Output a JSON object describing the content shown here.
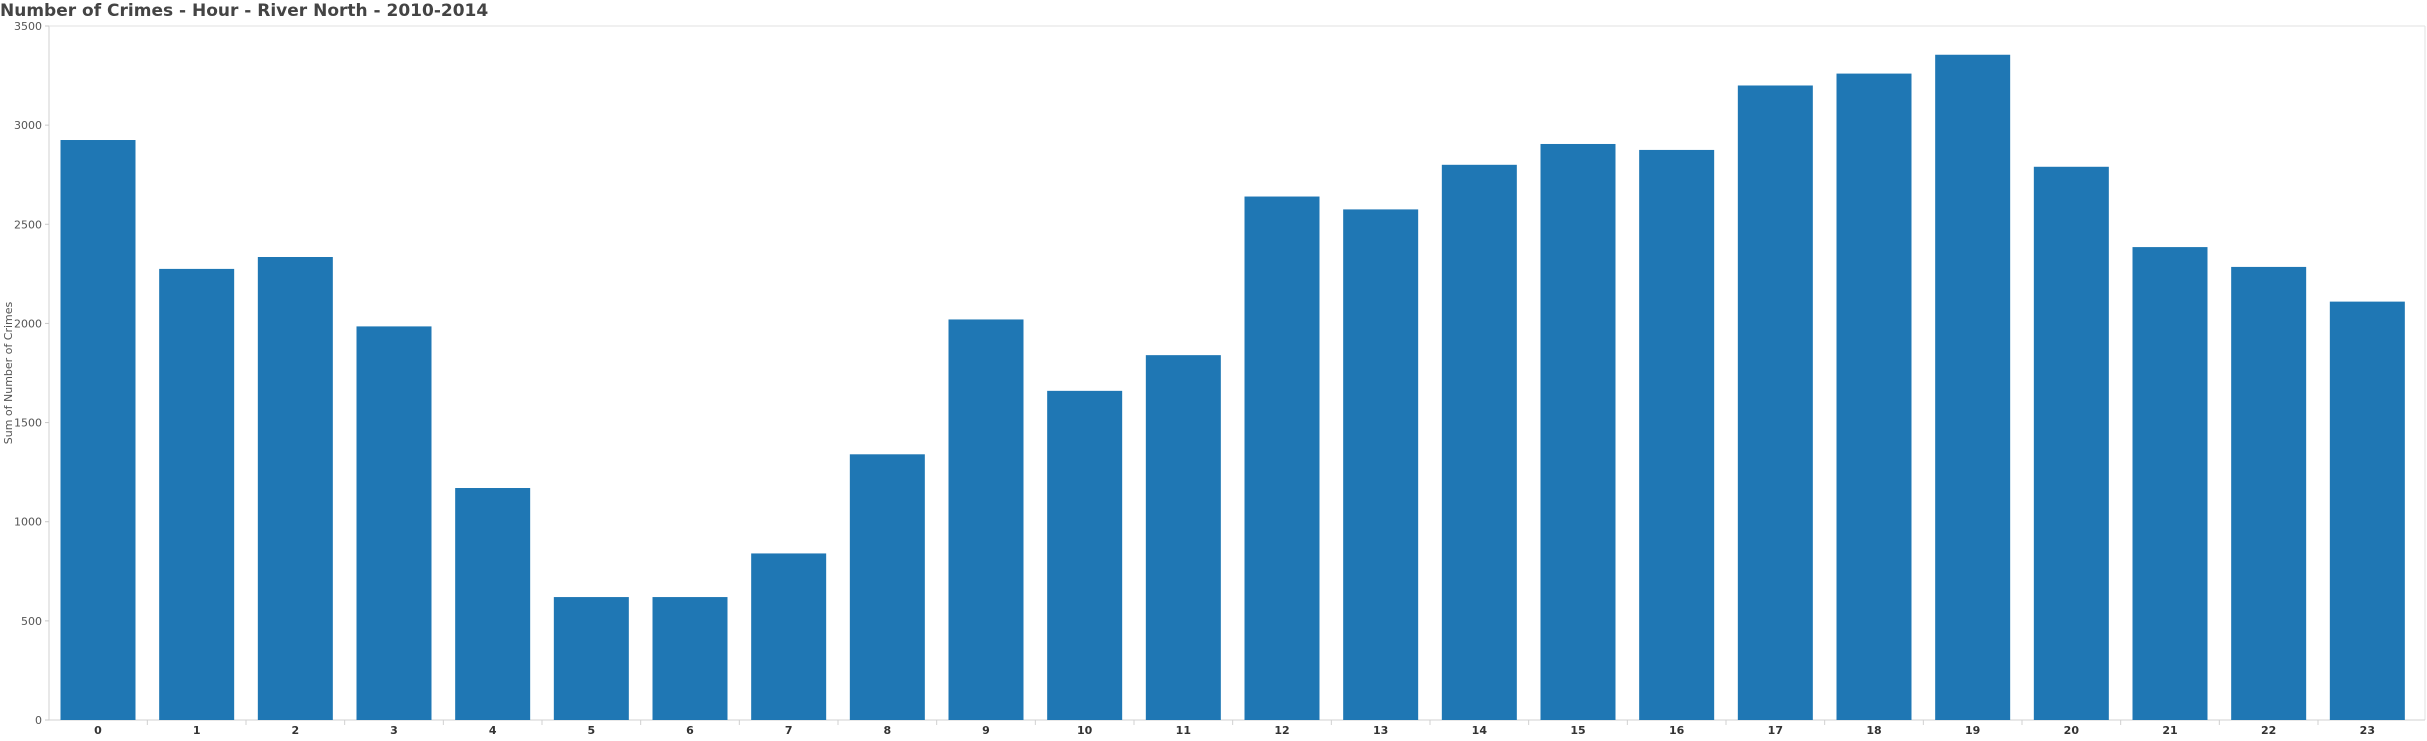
{
  "chart_data": {
    "type": "bar",
    "title": "Number of Crimes - Hour - River North - 2010-2014",
    "xlabel": "",
    "ylabel": "Sum of Number of Crimes",
    "categories": [
      "0",
      "1",
      "2",
      "3",
      "4",
      "5",
      "6",
      "7",
      "8",
      "9",
      "10",
      "11",
      "12",
      "13",
      "14",
      "15",
      "16",
      "17",
      "18",
      "19",
      "20",
      "21",
      "22",
      "23"
    ],
    "values": [
      2925,
      2275,
      2335,
      1985,
      1170,
      620,
      620,
      840,
      1340,
      2020,
      1660,
      1840,
      2640,
      2575,
      2800,
      2905,
      2875,
      3200,
      3260,
      3355,
      2790,
      2385,
      2285,
      2110
    ],
    "yticks": [
      0,
      500,
      1000,
      1500,
      2000,
      2500,
      3000,
      3500
    ],
    "ylim": [
      0,
      3500
    ],
    "grid": false,
    "legend": "none",
    "bar_color": "#1f77b4"
  }
}
